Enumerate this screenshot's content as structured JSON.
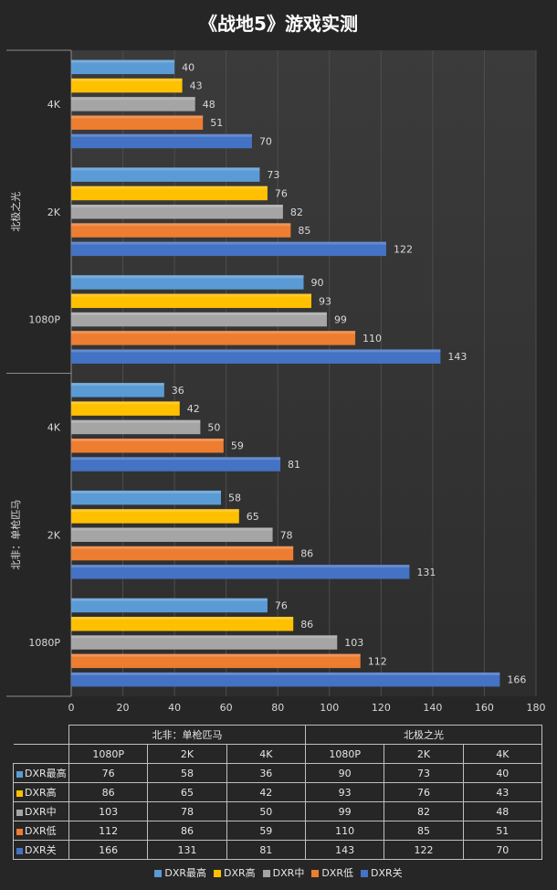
{
  "chart_data": {
    "type": "bar",
    "orientation": "horizontal",
    "title": "《战地5》游戏实测",
    "groups": [
      {
        "name": "北极之光",
        "categories": [
          {
            "label": "4K",
            "values": [
              40,
              43,
              48,
              51,
              70
            ]
          },
          {
            "label": "2K",
            "values": [
              73,
              76,
              82,
              85,
              122
            ]
          },
          {
            "label": "1080P",
            "values": [
              90,
              93,
              99,
              110,
              143
            ]
          }
        ]
      },
      {
        "name": "北非：单枪匹马",
        "categories": [
          {
            "label": "4K",
            "values": [
              36,
              42,
              50,
              59,
              81
            ]
          },
          {
            "label": "2K",
            "values": [
              58,
              65,
              78,
              86,
              131
            ]
          },
          {
            "label": "1080P",
            "values": [
              76,
              86,
              103,
              112,
              166
            ]
          }
        ]
      }
    ],
    "series": [
      {
        "name": "DXR最高",
        "color": "#5b9bd5"
      },
      {
        "name": "DXR高",
        "color": "#ffc000"
      },
      {
        "name": "DXR中",
        "color": "#a5a5a5"
      },
      {
        "name": "DXR低",
        "color": "#ed7d31"
      },
      {
        "name": "DXR关",
        "color": "#4472c4"
      }
    ],
    "xlim": [
      0,
      180
    ],
    "xticks": [
      0,
      20,
      40,
      60,
      80,
      100,
      120,
      140,
      160,
      180
    ],
    "grid": true,
    "legend": "bottom"
  },
  "table": {
    "group_headers": [
      "北非：单枪匹马",
      "北极之光"
    ],
    "col_headers": [
      "1080P",
      "2K",
      "4K",
      "1080P",
      "2K",
      "4K"
    ],
    "rows": [
      {
        "label": "DXR最高",
        "values": [
          76,
          58,
          36,
          90,
          73,
          40
        ]
      },
      {
        "label": "DXR高",
        "values": [
          86,
          65,
          42,
          93,
          76,
          43
        ]
      },
      {
        "label": "DXR中",
        "values": [
          103,
          78,
          50,
          99,
          82,
          48
        ]
      },
      {
        "label": "DXR低",
        "values": [
          112,
          86,
          59,
          110,
          85,
          51
        ]
      },
      {
        "label": "DXR关",
        "values": [
          166,
          131,
          81,
          143,
          122,
          70
        ]
      }
    ]
  }
}
